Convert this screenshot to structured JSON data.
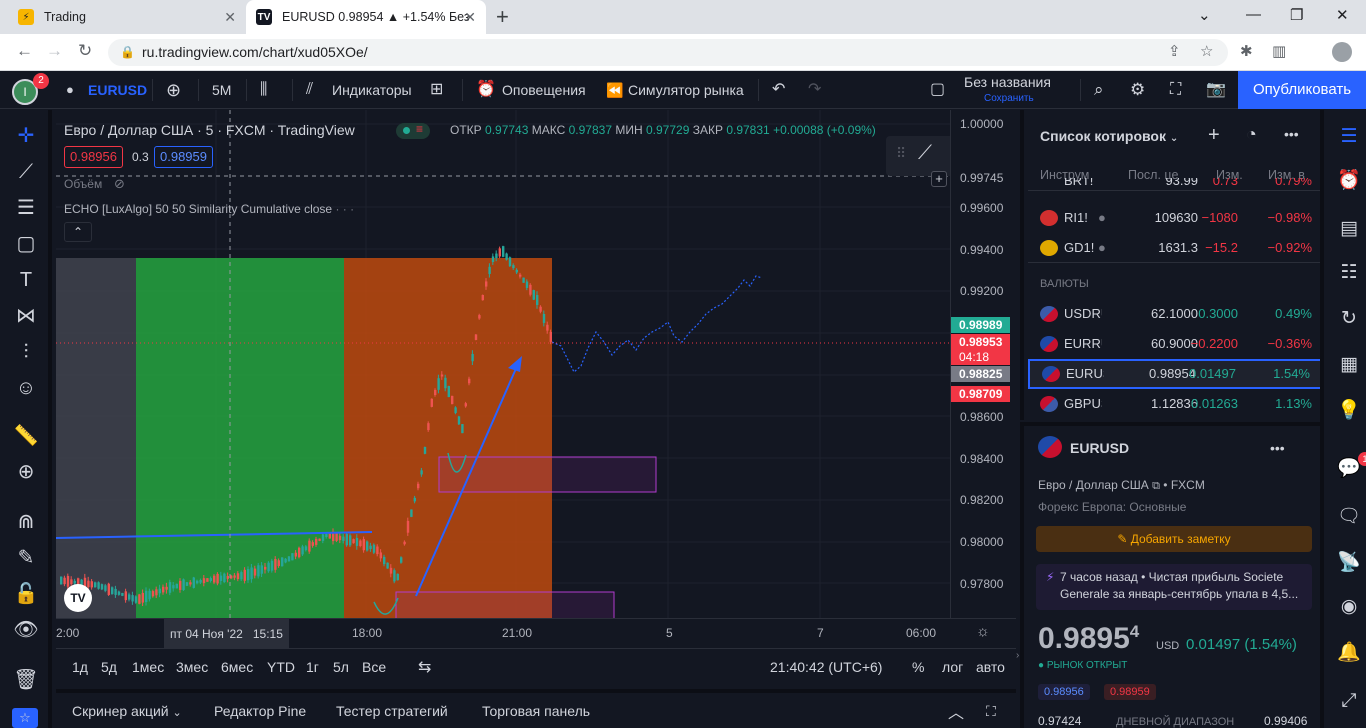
{
  "browser": {
    "tabs": [
      {
        "title": "Trading",
        "icon": "lightning-icon"
      },
      {
        "title": "EURUSD 0.98954 ▲ +1.54% Без н",
        "icon": "tradingview-icon"
      }
    ],
    "url": "ru.tradingview.com/chart/xud05XOe/"
  },
  "toolbar": {
    "avatar_badge": "2",
    "symbol": "EURUSD",
    "interval": "5M",
    "indicators": "Индикаторы",
    "alerts": "Оповещения",
    "replay": "Симулятор рынка",
    "layout_name": "Без названия",
    "layout_saved": "Сохранить",
    "publish": "Опубликовать"
  },
  "legend": {
    "title": "Евро / Доллар США · 5 · FXCM · TradingView",
    "open_label": "ОТКР",
    "open": "0.97743",
    "high_label": "МАКС",
    "high": "0.97837",
    "low_label": "МИН",
    "low": "0.97729",
    "close_label": "ЗАКР",
    "close": "0.97831",
    "change": "+0.00088 (+0.09%)",
    "bid": "0.98956",
    "spread": "0.3",
    "ask": "0.98959",
    "volume": "Объём",
    "indicator": "ECHO [LuxAlgo] 50 50 Similarity Cumulative close"
  },
  "price_scale": {
    "labels": [
      "1.00000",
      "0.99745",
      "0.99600",
      "0.99400",
      "0.99200",
      "0.98600",
      "0.98400",
      "0.98200",
      "0.98000",
      "0.97800"
    ],
    "tags": [
      {
        "value": "0.98989",
        "color": "#22ab94"
      },
      {
        "value": "0.98953",
        "color": "#f23645"
      },
      {
        "value": "04:18",
        "color": "#f23645"
      },
      {
        "value": "0.98825",
        "color": "#787b86"
      },
      {
        "value": "0.98709",
        "color": "#f23645"
      }
    ]
  },
  "time_scale": {
    "labels": [
      "2:00",
      "пт 04 Ноя '22",
      "15:15",
      "18:00",
      "21:00",
      "5",
      "7",
      "06:00"
    ]
  },
  "ranges": {
    "items": [
      "1д",
      "5д",
      "1мес",
      "3мес",
      "6мес",
      "YTD",
      "1г",
      "5л",
      "Все"
    ],
    "clock": "21:40:42 (UTC+6)",
    "percent": "%",
    "log": "лог",
    "auto": "авто"
  },
  "bottom_tabs": [
    "Скринер акций",
    "Редактор Pine",
    "Тестер стратегий",
    "Торговая панель"
  ],
  "watchlist": {
    "title": "Список котировок",
    "columns": [
      "Инструм",
      "Посл. це",
      "Изм.",
      "Изм. в"
    ],
    "partial_row": {
      "symbol": "BRT!",
      "last": "93.99",
      "chg": "0.73",
      "pct": "0.79%"
    },
    "rows": [
      {
        "symbol": "RI1!",
        "last": "109630",
        "chg": "−1080",
        "pct": "−0.98%",
        "dir": "neg",
        "flag": "#d32f2f"
      },
      {
        "symbol": "GD1!",
        "last": "1631.3",
        "chg": "−15.2",
        "pct": "−0.92%",
        "dir": "neg",
        "flag": "#e0a800"
      }
    ],
    "section": "ВАЛЮТЫ",
    "currencies": [
      {
        "symbol": "USDRU",
        "last": "62.1000",
        "chg": "0.3000",
        "pct": "0.49%",
        "dir": "pos"
      },
      {
        "symbol": "EURRU",
        "last": "60.9000",
        "chg": "−0.2200",
        "pct": "−0.36%",
        "dir": "neg"
      },
      {
        "symbol": "EURUSD",
        "last": "0.98954",
        "chg": "0.01497",
        "pct": "1.54%",
        "dir": "pos"
      },
      {
        "symbol": "GBPUSD",
        "last": "1.12836",
        "chg": "0.01263",
        "pct": "1.13%",
        "dir": "pos"
      }
    ]
  },
  "details": {
    "symbol": "EURUSD",
    "name": "Евро / Доллар США",
    "exchange": "FXCM",
    "category": "Форекс Европа: Основные",
    "note_button": "Добавить заметку",
    "news_time": "7 часов назад",
    "news_text": "Чистая прибыль Societe Generale за январь-сентябрь упала в 4,5...",
    "price": "0.9895",
    "price_sup": "4",
    "currency": "USD",
    "change": "0.01497 (1.54%)",
    "market_status": "РЫНОК ОТКРЫТ",
    "bid": "0.98956",
    "ask": "0.98959",
    "range_low": "0.97424",
    "range_label": "ДНЕВНОЙ ДИАПАЗОН",
    "range_high": "0.99406"
  },
  "rightbar": {
    "chat_badge": "1"
  }
}
